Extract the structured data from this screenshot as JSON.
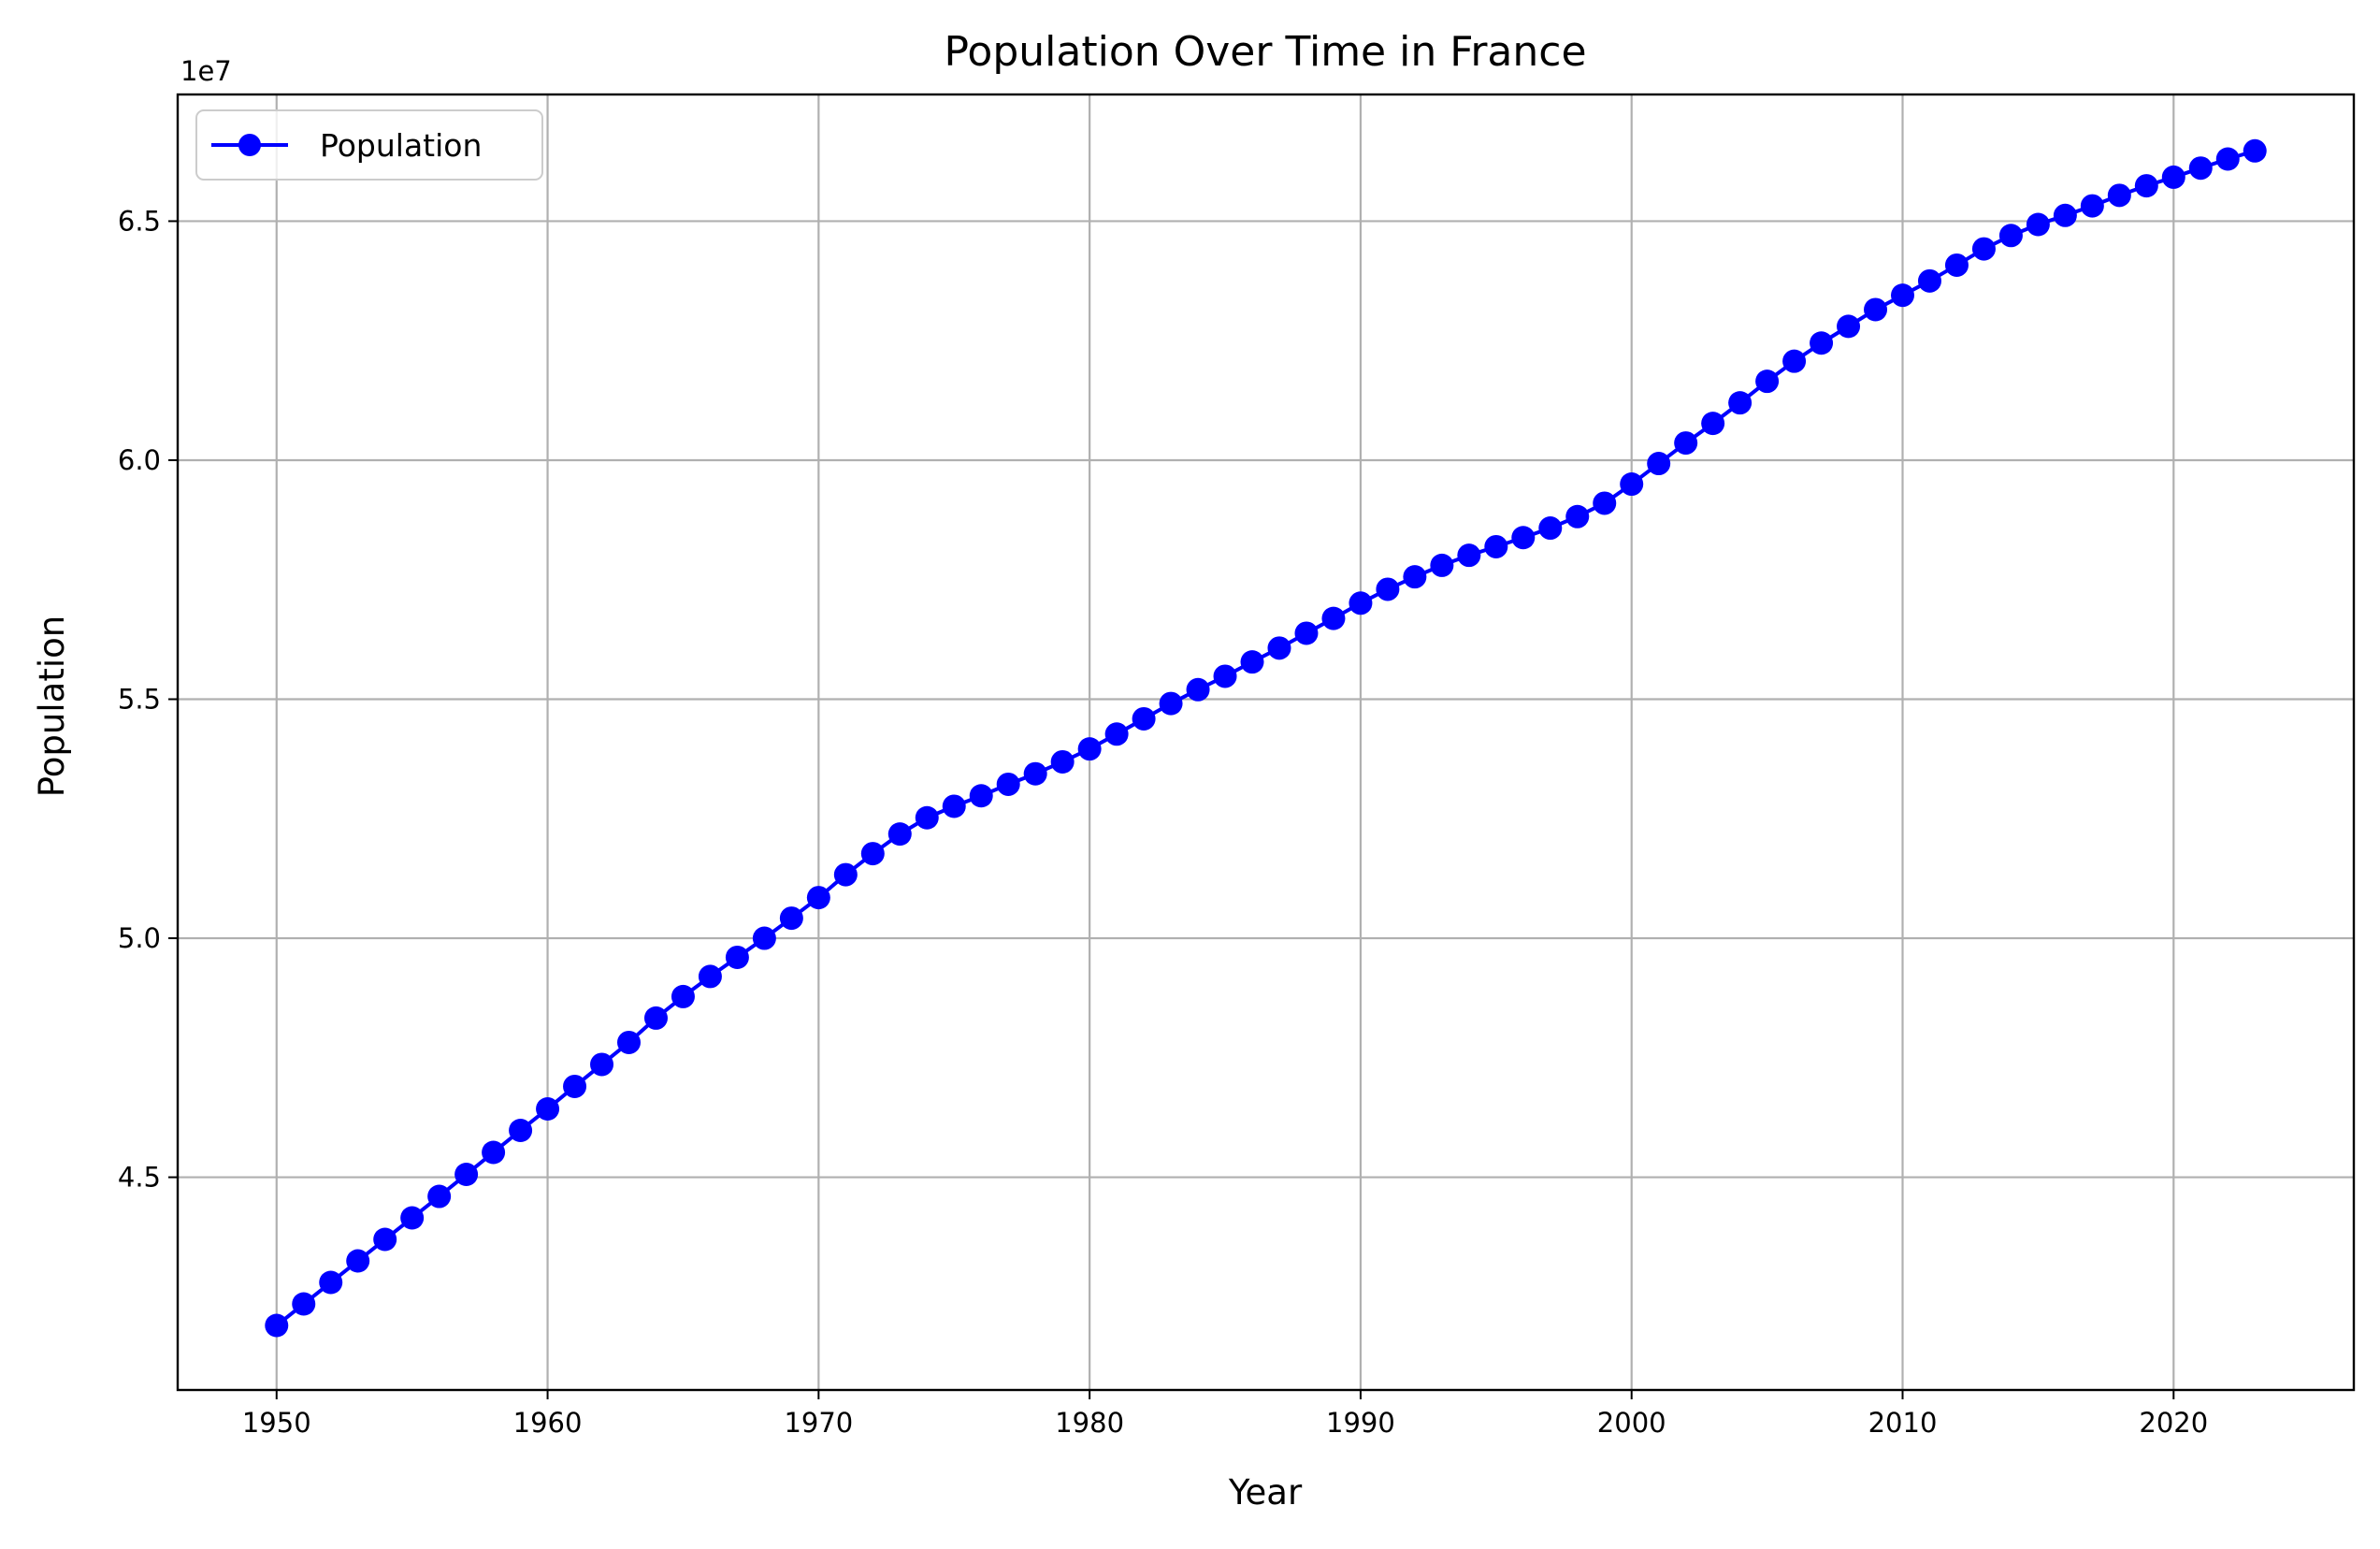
{
  "chart_data": {
    "type": "line",
    "title": "Population Over Time in France",
    "xlabel": "Year",
    "ylabel": "Population",
    "y_offset_label": "1e7",
    "y_scale_factor": 10000000,
    "xlim": [
      1946.35,
      2026.65
    ],
    "ylim": [
      40550000,
      67650000
    ],
    "x_ticks": [
      1950,
      1960,
      1970,
      1980,
      1990,
      2000,
      2010,
      2020
    ],
    "x_tick_labels": [
      "1950",
      "1960",
      "1970",
      "1980",
      "1990",
      "2000",
      "2010",
      "2020"
    ],
    "y_ticks": [
      45000000,
      50000000,
      55000000,
      60000000,
      65000000
    ],
    "y_tick_labels": [
      "4.5",
      "5.0",
      "5.5",
      "6.0",
      "6.5"
    ],
    "grid": true,
    "legend_position": "top-left",
    "series": [
      {
        "name": "Population",
        "color": "#0000ff",
        "marker": "circle",
        "x": [
          1950,
          1951,
          1952,
          1953,
          1954,
          1955,
          1956,
          1957,
          1958,
          1959,
          1960,
          1961,
          1962,
          1963,
          1964,
          1965,
          1966,
          1967,
          1968,
          1969,
          1970,
          1971,
          1972,
          1973,
          1974,
          1975,
          1976,
          1977,
          1978,
          1979,
          1980,
          1981,
          1982,
          1983,
          1984,
          1985,
          1986,
          1987,
          1988,
          1989,
          1990,
          1991,
          1992,
          1993,
          1994,
          1995,
          1996,
          1997,
          1998,
          1999,
          2000,
          2001,
          2002,
          2003,
          2004,
          2005,
          2006,
          2007,
          2008,
          2009,
          2010,
          2011,
          2012,
          2013,
          2014,
          2015,
          2016,
          2017,
          2018,
          2019,
          2020,
          2021,
          2022,
          2023
        ],
        "values": [
          41900000,
          42350000,
          42800000,
          43250000,
          43700000,
          44150000,
          44600000,
          45060000,
          45520000,
          45980000,
          46430000,
          46900000,
          47360000,
          47820000,
          48330000,
          48780000,
          49200000,
          49600000,
          50000000,
          50420000,
          50850000,
          51330000,
          51770000,
          52180000,
          52520000,
          52760000,
          52980000,
          53220000,
          53440000,
          53690000,
          53960000,
          54270000,
          54590000,
          54910000,
          55200000,
          55480000,
          55780000,
          56070000,
          56380000,
          56690000,
          57010000,
          57300000,
          57560000,
          57800000,
          58010000,
          58190000,
          58380000,
          58580000,
          58820000,
          59100000,
          59500000,
          59930000,
          60360000,
          60770000,
          61200000,
          61650000,
          62070000,
          62450000,
          62800000,
          63150000,
          63450000,
          63750000,
          64080000,
          64420000,
          64700000,
          64930000,
          65120000,
          65320000,
          65540000,
          65740000,
          65920000,
          66110000,
          66300000,
          66470000
        ]
      }
    ]
  }
}
